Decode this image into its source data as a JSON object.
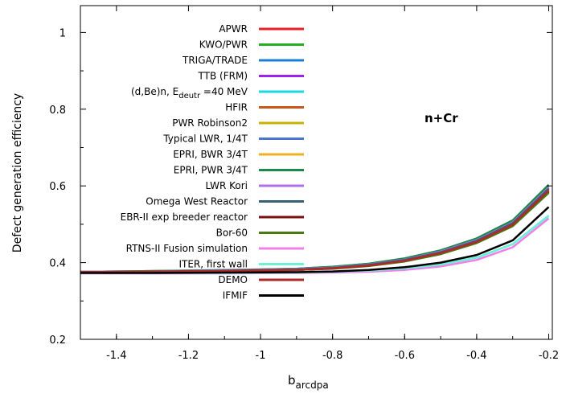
{
  "chart_data": {
    "type": "line",
    "title": "",
    "annotation": "n+Cr",
    "xlabel_main": "b",
    "xlabel_sub": "arcdpa",
    "ylabel": "Defect generation efficiency",
    "xlim": [
      -1.5,
      -0.19
    ],
    "ylim": [
      0.2,
      1.07
    ],
    "x_ticks": [
      -1.4,
      -1.2,
      -1,
      -0.8,
      -0.6,
      -0.4,
      -0.2
    ],
    "x_tick_labels": [
      "-1.4",
      "-1.2",
      "-1",
      "-0.8",
      "-0.6",
      "-0.4",
      "-0.2"
    ],
    "y_ticks": [
      0.2,
      0.4,
      0.6,
      0.8,
      1.0
    ],
    "y_tick_labels": [
      "0.2",
      "0.4",
      "0.6",
      "0.8",
      "1"
    ],
    "grid": false,
    "legend_position": "top-left",
    "x": [
      -1.5,
      -1.3,
      -1.1,
      -0.9,
      -0.8,
      -0.7,
      -0.6,
      -0.5,
      -0.4,
      -0.3,
      -0.2
    ],
    "series": [
      {
        "label_parts": [
          "APWR"
        ],
        "color": "#e8202a",
        "values": [
          0.375,
          0.376,
          0.378,
          0.381,
          0.385,
          0.392,
          0.405,
          0.425,
          0.455,
          0.5,
          0.59
        ]
      },
      {
        "label_parts": [
          "KWO/PWR"
        ],
        "color": "#22b024",
        "values": [
          0.376,
          0.378,
          0.38,
          0.384,
          0.389,
          0.397,
          0.411,
          0.432,
          0.463,
          0.51,
          0.602
        ]
      },
      {
        "label_parts": [
          "TRIGA/TRADE"
        ],
        "color": "#1a7fd8",
        "values": [
          0.375,
          0.377,
          0.379,
          0.383,
          0.387,
          0.395,
          0.408,
          0.428,
          0.458,
          0.504,
          0.594
        ]
      },
      {
        "label_parts": [
          "TTB (FRM)"
        ],
        "color": "#a020f0",
        "values": [
          0.375,
          0.376,
          0.378,
          0.381,
          0.385,
          0.392,
          0.404,
          0.423,
          0.452,
          0.497,
          0.586
        ]
      },
      {
        "label_parts": [
          "(d,Be)n, E",
          "deutr",
          " =40 MeV"
        ],
        "color": "#18d8e0",
        "values": [
          0.373,
          0.373,
          0.374,
          0.375,
          0.376,
          0.379,
          0.385,
          0.395,
          0.413,
          0.448,
          0.522
        ]
      },
      {
        "label_parts": [
          "HFIR"
        ],
        "color": "#c8581a",
        "values": [
          0.375,
          0.376,
          0.378,
          0.381,
          0.385,
          0.392,
          0.404,
          0.424,
          0.453,
          0.498,
          0.587
        ]
      },
      {
        "label_parts": [
          "PWR Robinson2"
        ],
        "color": "#c8b400",
        "values": [
          0.375,
          0.377,
          0.379,
          0.382,
          0.386,
          0.393,
          0.406,
          0.426,
          0.456,
          0.502,
          0.592
        ]
      },
      {
        "label_parts": [
          "Typical LWR, 1/4T"
        ],
        "color": "#4a74d4",
        "values": [
          0.376,
          0.378,
          0.38,
          0.384,
          0.388,
          0.396,
          0.41,
          0.431,
          0.462,
          0.508,
          0.6
        ]
      },
      {
        "label_parts": [
          "EPRI, BWR 3/4T"
        ],
        "color": "#f0b020",
        "values": [
          0.376,
          0.378,
          0.38,
          0.383,
          0.388,
          0.395,
          0.409,
          0.43,
          0.46,
          0.506,
          0.597
        ]
      },
      {
        "label_parts": [
          "EPRI, PWR 3/4T"
        ],
        "color": "#1a8a4a",
        "values": [
          0.376,
          0.378,
          0.381,
          0.384,
          0.389,
          0.397,
          0.411,
          0.432,
          0.463,
          0.51,
          0.603
        ]
      },
      {
        "label_parts": [
          "LWR Kori"
        ],
        "color": "#b070e8",
        "values": [
          0.376,
          0.377,
          0.38,
          0.383,
          0.387,
          0.395,
          0.408,
          0.429,
          0.459,
          0.505,
          0.596
        ]
      },
      {
        "label_parts": [
          "Omega West Reactor"
        ],
        "color": "#3a6078",
        "values": [
          0.375,
          0.377,
          0.379,
          0.382,
          0.386,
          0.394,
          0.407,
          0.427,
          0.457,
          0.503,
          0.593
        ]
      },
      {
        "label_parts": [
          "EBR-II exp breeder reactor"
        ],
        "color": "#7a1010",
        "values": [
          0.375,
          0.376,
          0.378,
          0.381,
          0.385,
          0.392,
          0.404,
          0.423,
          0.452,
          0.496,
          0.584
        ]
      },
      {
        "label_parts": [
          "Bor-60"
        ],
        "color": "#4a7a10",
        "values": [
          0.375,
          0.376,
          0.378,
          0.381,
          0.384,
          0.391,
          0.403,
          0.422,
          0.451,
          0.495,
          0.582
        ]
      },
      {
        "label_parts": [
          "RTNS-II Fusion simulation"
        ],
        "color": "#f080e8",
        "values": [
          0.372,
          0.372,
          0.372,
          0.373,
          0.374,
          0.376,
          0.381,
          0.39,
          0.407,
          0.44,
          0.515
        ]
      },
      {
        "label_parts": [
          "ITER, first wall"
        ],
        "color": "#70f0d8",
        "values": [
          0.373,
          0.373,
          0.373,
          0.374,
          0.376,
          0.379,
          0.385,
          0.395,
          0.413,
          0.448,
          0.523
        ]
      },
      {
        "label_parts": [
          "DEMO"
        ],
        "color": "#b02828",
        "values": [
          0.375,
          0.376,
          0.378,
          0.381,
          0.385,
          0.392,
          0.405,
          0.425,
          0.454,
          0.499,
          0.588
        ]
      },
      {
        "label_parts": [
          "IFMIF"
        ],
        "color": "#000000",
        "values": [
          0.373,
          0.373,
          0.374,
          0.375,
          0.377,
          0.381,
          0.388,
          0.4,
          0.42,
          0.458,
          0.545
        ]
      }
    ]
  }
}
